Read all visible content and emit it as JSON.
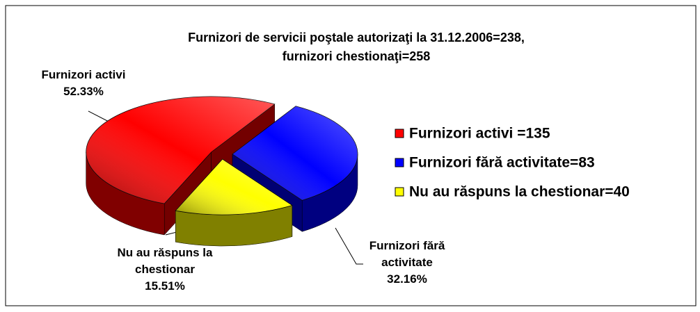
{
  "chart_data": {
    "type": "pie",
    "title": [
      "Furnizori de servicii poştale autorizaţi la 31.12.2006=238,",
      "furnizori chestionaţi=258"
    ],
    "categories": [
      "Furnizori activi",
      "Furnizori fără activitate",
      "Nu au răspuns la chestionar"
    ],
    "values": [
      52.33,
      32.16,
      15.51
    ],
    "value_labels": [
      "52.33%",
      "32.16%",
      "15.51%"
    ],
    "colors": [
      "#ff0000",
      "#0000ff",
      "#ffff00"
    ],
    "legend": [
      "Furnizori activi =135",
      "Furnizori fără activitate=83",
      "Nu au răspuns la chestionar=40"
    ],
    "legend_position": "right"
  }
}
